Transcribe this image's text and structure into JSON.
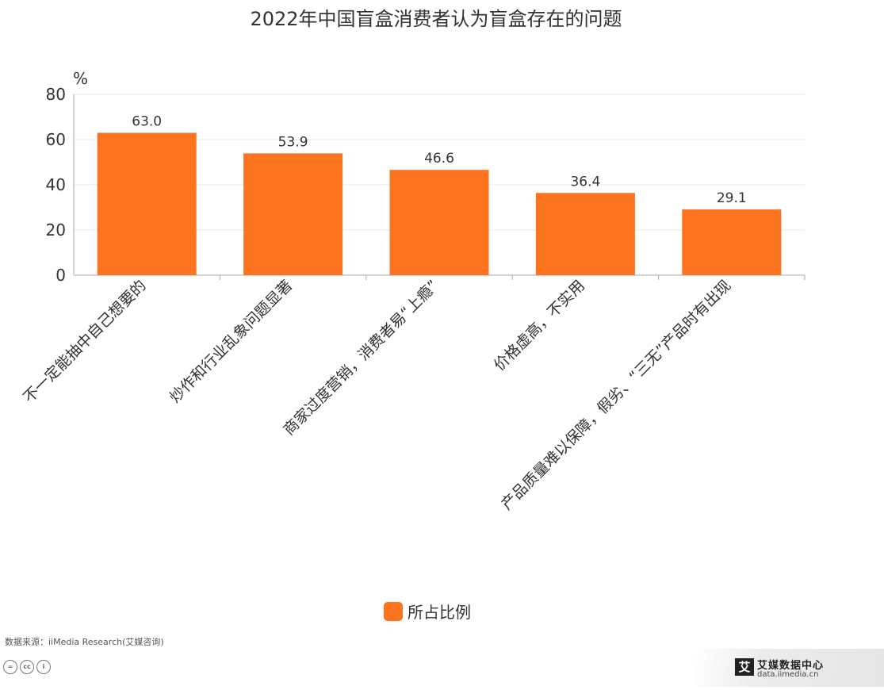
{
  "chart_data": {
    "type": "bar",
    "title": "2022年中国盲盒消费者认为盲盒存在的问题",
    "ylabel": "%",
    "xlabel": "",
    "ylim": [
      0,
      80
    ],
    "yticks": [
      0,
      20,
      40,
      60,
      80
    ],
    "grid": true,
    "categories": [
      "不一定能抽中自己想要的",
      "炒作和行业乱象问题显著",
      "商家过度营销，消费者易“上瘾”",
      "价格虚高，不实用",
      "产品质量难以保障，假劣、“三无”产品时有出现"
    ],
    "series": [
      {
        "name": "所占比例",
        "values": [
          63.0,
          53.9,
          46.6,
          36.4,
          29.1
        ],
        "color": "#fc7320"
      }
    ],
    "legend_position": "bottom-center"
  },
  "footer": {
    "source": "数据来源：iiMedia Research(艾媒咨询)",
    "cc_icons": [
      "equals-icon",
      "cc-icon",
      "person-icon"
    ]
  },
  "brand": {
    "logo_glyph": "艾",
    "name": "艾媒数据中心",
    "url": "data.iimedia.cn"
  }
}
